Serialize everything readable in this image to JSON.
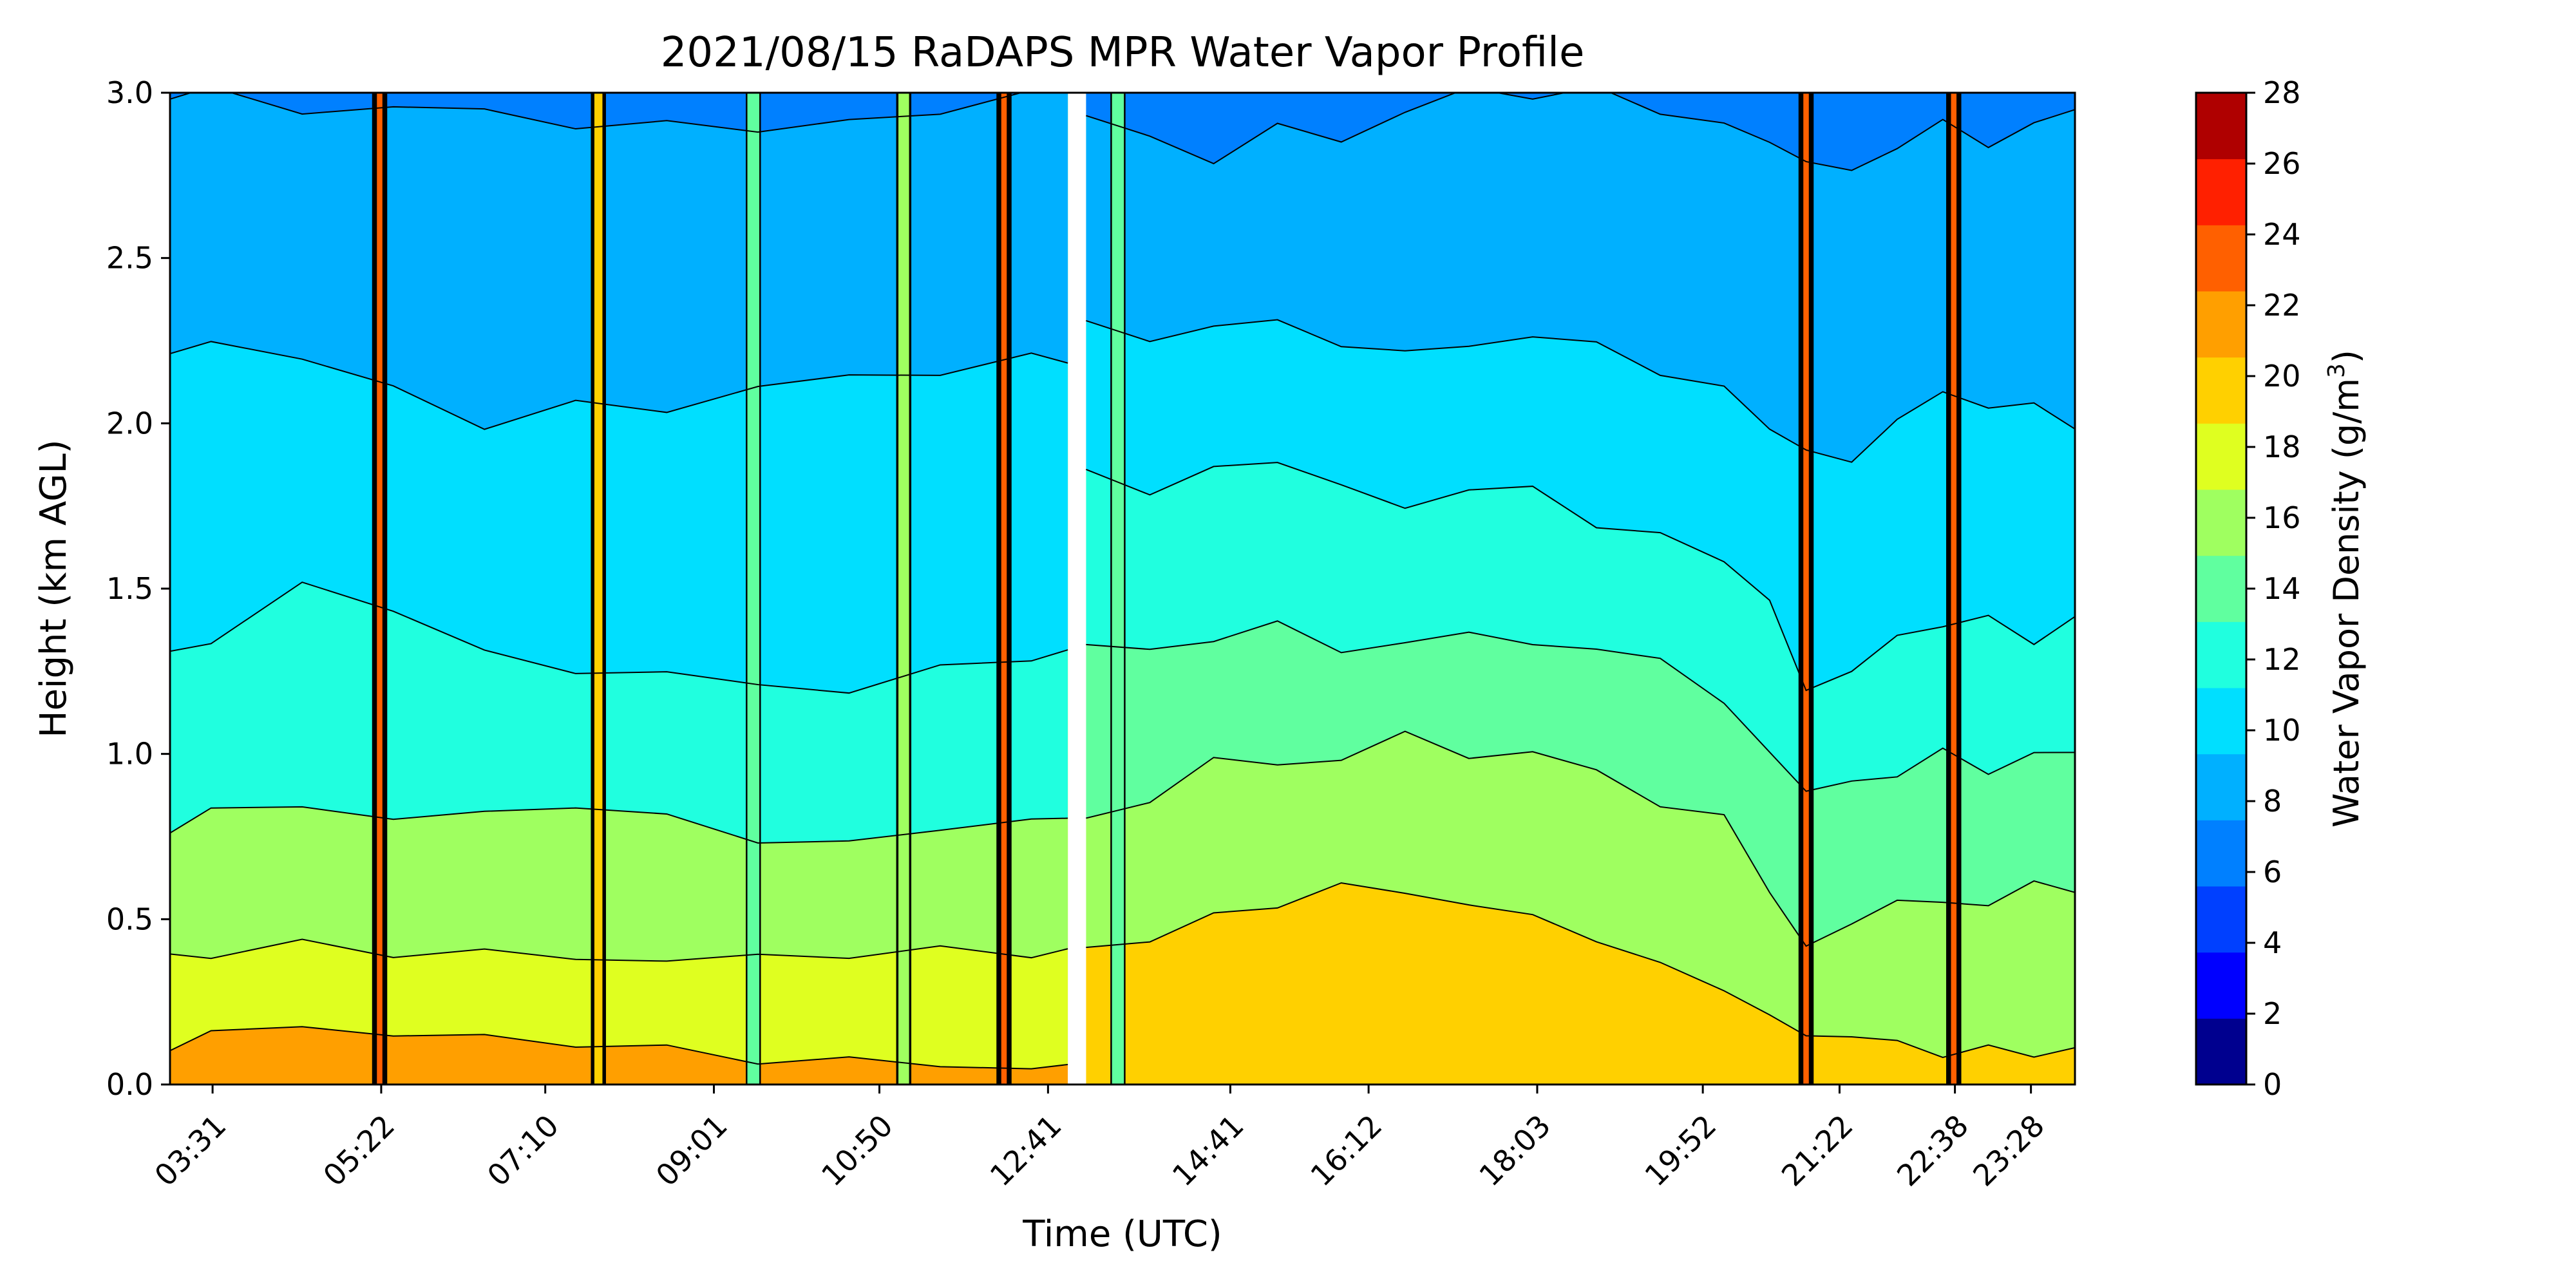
{
  "chart_data": {
    "type": "heatmap",
    "title": "2021/08/15 RaDAPS MPR Water Vapor Profile",
    "xlabel": "Time (UTC)",
    "ylabel": "Height (km AGL)",
    "colorbar_label": "Water Vapor Density (g/m",
    "colorbar_label_sup": "3",
    "colorbar_label_end": ")",
    "xlim_hours": [
      3.05,
      23.95
    ],
    "ylim": [
      0.0,
      3.0
    ],
    "x_ticks": [
      {
        "label": "03:31",
        "hour": 3.517
      },
      {
        "label": "05:22",
        "hour": 5.367
      },
      {
        "label": "07:10",
        "hour": 7.167
      },
      {
        "label": "09:01",
        "hour": 9.017
      },
      {
        "label": "10:50",
        "hour": 10.833
      },
      {
        "label": "12:41",
        "hour": 12.683
      },
      {
        "label": "14:41",
        "hour": 14.683
      },
      {
        "label": "16:12",
        "hour": 16.2
      },
      {
        "label": "18:03",
        "hour": 18.05
      },
      {
        "label": "19:52",
        "hour": 19.867
      },
      {
        "label": "21:22",
        "hour": 21.367
      },
      {
        "label": "22:38",
        "hour": 22.633
      },
      {
        "label": "23:28",
        "hour": 23.467
      }
    ],
    "y_ticks": [
      {
        "label": "0.0",
        "value": 0.0
      },
      {
        "label": "0.5",
        "value": 0.5
      },
      {
        "label": "1.0",
        "value": 1.0
      },
      {
        "label": "1.5",
        "value": 1.5
      },
      {
        "label": "2.0",
        "value": 2.0
      },
      {
        "label": "2.5",
        "value": 2.5
      },
      {
        "label": "3.0",
        "value": 3.0
      }
    ],
    "colorbar": {
      "levels": [
        0,
        2,
        4,
        6,
        8,
        10,
        12,
        14,
        16,
        18,
        20,
        22,
        24,
        26,
        28
      ],
      "tick_labels": [
        "0",
        "2",
        "4",
        "6",
        "8",
        "10",
        "12",
        "14",
        "16",
        "18",
        "20",
        "22",
        "24",
        "26",
        "28"
      ],
      "colors": [
        "#00008f",
        "#0000ff",
        "#0040ff",
        "#0080ff",
        "#00b0ff",
        "#00dfff",
        "#20ffdf",
        "#60ff9f",
        "#9fff60",
        "#dfff20",
        "#ffd000",
        "#ff9f00",
        "#ff6000",
        "#ff2000",
        "#af0000"
      ]
    },
    "profile_series": {
      "description_levels_g_m3": [
        20,
        18,
        16,
        14,
        12,
        10,
        8,
        6
      ],
      "day_period": {
        "x_hours": [
          13.1,
          13.8,
          14.5,
          15.2,
          15.9,
          16.6,
          17.3,
          18.0,
          18.7,
          19.4,
          20.1,
          20.6,
          21.0,
          21.5,
          22.0,
          22.5,
          23.0,
          23.5,
          23.95
        ],
        "contour_heights_km": {
          "18": [
            0.4,
            0.45,
            0.5,
            0.55,
            0.6,
            0.58,
            0.55,
            0.5,
            0.45,
            0.35,
            0.3,
            0.2,
            0.15,
            0.15,
            0.12,
            0.1,
            0.1,
            0.1,
            0.1
          ],
          "16": [
            0.8,
            0.85,
            1.0,
            0.95,
            1.0,
            1.05,
            1.0,
            1.0,
            0.95,
            0.85,
            0.8,
            0.6,
            0.4,
            0.5,
            0.55,
            0.55,
            0.55,
            0.6,
            0.6
          ],
          "14": [
            1.35,
            1.3,
            1.35,
            1.4,
            1.3,
            1.35,
            1.35,
            1.35,
            1.3,
            1.3,
            1.15,
            1.0,
            0.9,
            0.9,
            0.95,
            1.0,
            0.95,
            1.0,
            1.0
          ],
          "12": [
            1.85,
            1.8,
            1.85,
            1.9,
            1.8,
            1.75,
            1.8,
            1.8,
            1.7,
            1.65,
            1.6,
            1.45,
            1.2,
            1.25,
            1.35,
            1.4,
            1.4,
            1.35,
            1.4
          ],
          "10": [
            2.3,
            2.25,
            2.3,
            2.3,
            2.25,
            2.2,
            2.25,
            2.25,
            2.25,
            2.15,
            2.1,
            2.0,
            1.9,
            1.9,
            2.0,
            2.1,
            2.05,
            2.05,
            2.0
          ],
          "8": [
            2.95,
            2.85,
            2.8,
            2.9,
            2.85,
            2.95,
            3.0,
            3.0,
            3.0,
            2.95,
            2.9,
            2.85,
            2.8,
            2.75,
            2.85,
            2.9,
            2.85,
            2.9,
            2.95
          ]
        }
      },
      "early_period": {
        "x_hours": [
          3.05,
          3.5,
          4.5,
          5.5,
          6.5,
          7.5,
          8.5,
          9.5,
          10.5,
          11.5,
          12.5,
          12.9
        ],
        "contour_heights_km": {
          "20": [
            0.12,
            0.15,
            0.18,
            0.15,
            0.14,
            0.13,
            0.1,
            0.08,
            0.07,
            0.06,
            0.05,
            0.05
          ],
          "18": [
            0.38,
            0.4,
            0.42,
            0.4,
            0.4,
            0.38,
            0.38,
            0.38,
            0.4,
            0.4,
            0.4,
            0.4
          ],
          "14": [
            0.78,
            0.82,
            0.85,
            0.8,
            0.82,
            0.85,
            0.8,
            0.75,
            0.72,
            0.78,
            0.8,
            0.8
          ],
          "12": [
            1.3,
            1.35,
            1.5,
            1.45,
            1.3,
            1.25,
            1.25,
            1.2,
            1.2,
            1.25,
            1.3,
            1.3
          ],
          "10": [
            2.2,
            2.25,
            2.2,
            2.1,
            2.0,
            2.05,
            2.05,
            2.1,
            2.15,
            2.15,
            2.2,
            2.2
          ],
          "8": [
            3.0,
            3.0,
            2.95,
            2.95,
            2.95,
            2.9,
            2.9,
            2.9,
            2.9,
            2.95,
            3.0,
            3.0
          ]
        }
      },
      "spikes": [
        {
          "hour": 5.35,
          "peak": 26
        },
        {
          "hour": 7.75,
          "peak": 22
        },
        {
          "hour": 9.45,
          "peak": 16
        },
        {
          "hour": 11.1,
          "peak": 18
        },
        {
          "hour": 12.2,
          "peak": 26
        },
        {
          "hour": 13.45,
          "peak": 16
        },
        {
          "hour": 21.0,
          "peak": 26
        },
        {
          "hour": 22.62,
          "peak": 26
        }
      ]
    }
  }
}
